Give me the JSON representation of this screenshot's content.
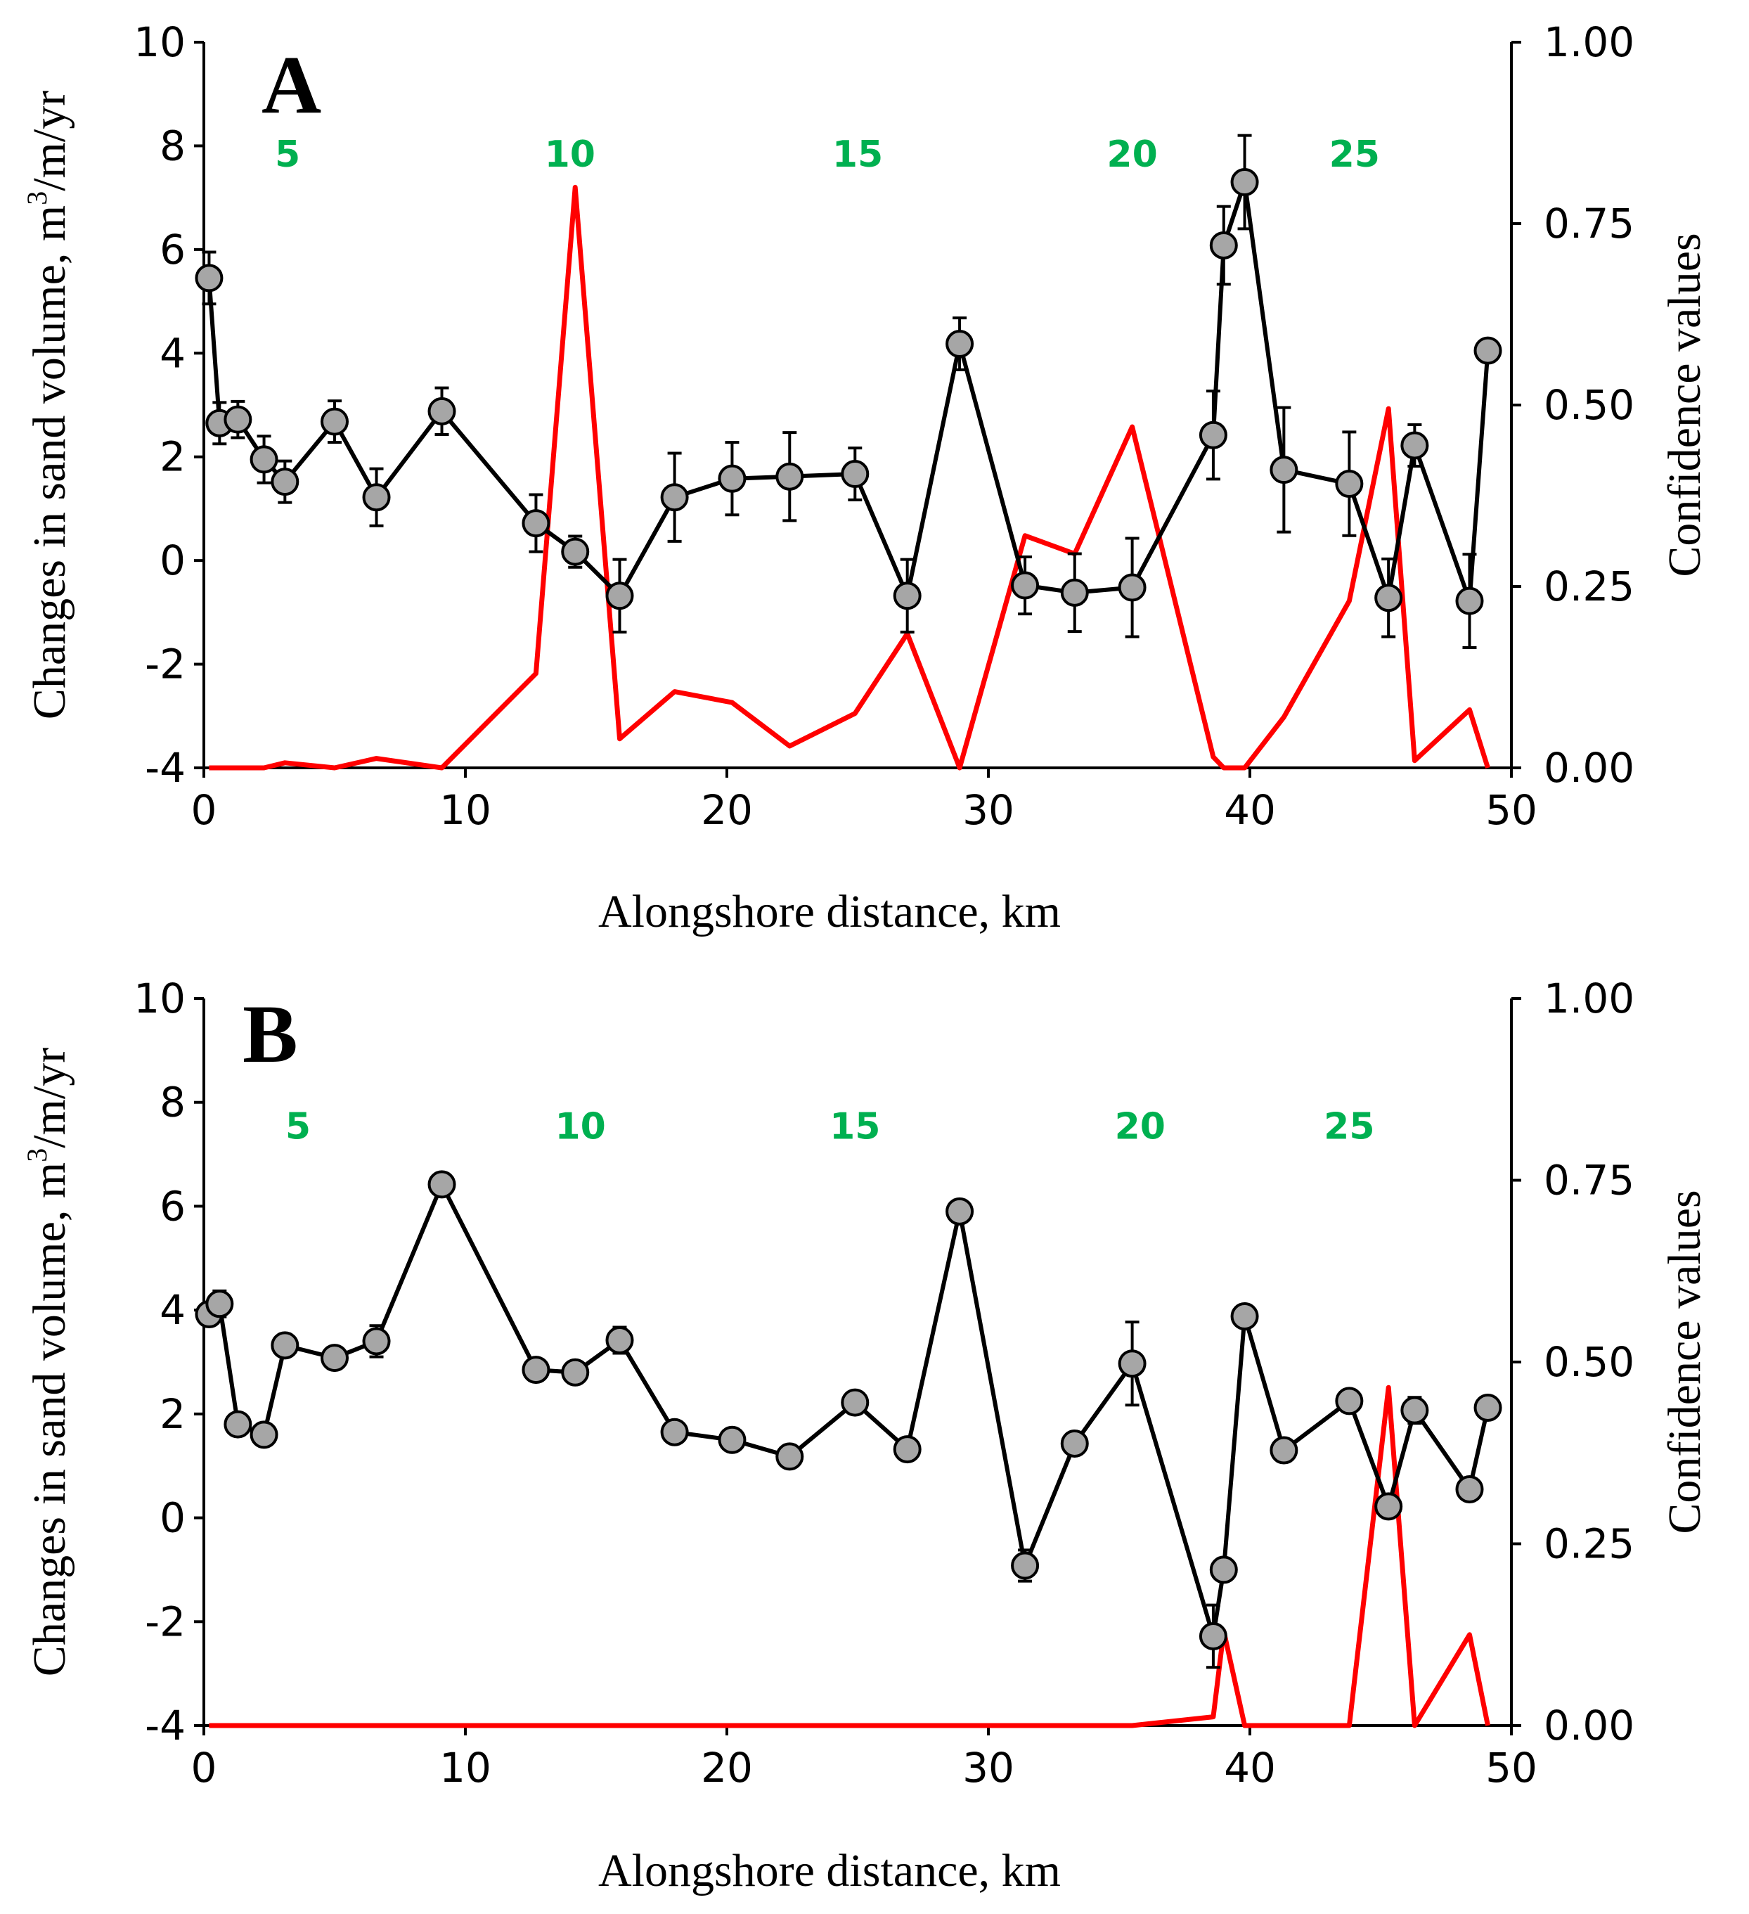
{
  "colors": {
    "series": "#000000",
    "marker_fill": "#a6a6a6",
    "confidence": "#ff0000",
    "profile_labels": "#00b050"
  },
  "chart_data": [
    {
      "type": "line",
      "panel_label": "A",
      "xlabel": "Alongshore distance, km",
      "ylabel_main": "Changes in sand volume, m",
      "ylabel_sup": "3",
      "ylabel_tail": "/m/yr",
      "y2label": "Confidence values",
      "xlim": [
        0,
        50
      ],
      "ylim": [
        -4,
        10
      ],
      "y2lim": [
        0,
        1
      ],
      "x_ticks": [
        "0",
        "10",
        "20",
        "30",
        "40",
        "50"
      ],
      "y_ticks": [
        "-4",
        "-2",
        "0",
        "2",
        "4",
        "6",
        "8",
        "10"
      ],
      "y2_ticks": [
        "0.00",
        "0.25",
        "0.50",
        "0.75",
        "1.00"
      ],
      "profile_labels": [
        {
          "text": "5",
          "x": 3.2,
          "y": 7.6
        },
        {
          "text": "10",
          "x": 14.0,
          "y": 7.6
        },
        {
          "text": "15",
          "x": 25.0,
          "y": 7.6
        },
        {
          "text": "20",
          "x": 35.5,
          "y": 7.6
        },
        {
          "text": "25",
          "x": 44.0,
          "y": 7.6
        }
      ],
      "series": [
        {
          "x": [
            0.2,
            0.6,
            1.3,
            2.3,
            3.1,
            5.0,
            6.6,
            9.1,
            12.7,
            14.2,
            15.9,
            18.0,
            20.2,
            22.4,
            24.9,
            26.9,
            28.9,
            31.4,
            33.3,
            35.5,
            38.6,
            39.0,
            39.8,
            41.3,
            43.8,
            45.3,
            46.3,
            48.4,
            49.1
          ],
          "values": [
            5.45,
            2.65,
            2.72,
            1.95,
            1.52,
            2.68,
            1.22,
            2.88,
            0.72,
            0.17,
            -0.68,
            1.22,
            1.58,
            1.62,
            1.67,
            -0.68,
            4.18,
            -0.48,
            -0.62,
            -0.52,
            2.42,
            6.08,
            7.3,
            1.75,
            1.48,
            -0.72,
            2.22,
            -0.78,
            4.05
          ],
          "err": [
            0.5,
            0.4,
            0.35,
            0.45,
            0.4,
            0.4,
            0.55,
            0.45,
            0.55,
            0.3,
            0.7,
            0.85,
            0.7,
            0.85,
            0.5,
            0.7,
            0.5,
            0.55,
            0.75,
            0.95,
            0.85,
            0.75,
            0.9,
            1.2,
            1.0,
            0.75,
            0.4,
            0.9,
            0.0
          ]
        },
        {
          "axis": "y2",
          "x": [
            0.2,
            2.3,
            3.1,
            5.0,
            6.6,
            9.1,
            12.7,
            14.2,
            15.9,
            18.0,
            20.2,
            22.4,
            24.9,
            26.9,
            28.9,
            31.4,
            33.3,
            35.5,
            38.6,
            39.0,
            39.8,
            41.3,
            43.8,
            45.3,
            46.3,
            48.4,
            49.1
          ],
          "values": [
            0.0,
            0.0,
            0.007,
            0.0,
            0.013,
            0.0,
            0.13,
            0.8,
            0.04,
            0.105,
            0.09,
            0.03,
            0.075,
            0.185,
            0.0,
            0.32,
            0.295,
            0.47,
            0.015,
            0.0,
            0.0,
            0.07,
            0.23,
            0.495,
            0.01,
            0.08,
            0.0
          ]
        }
      ]
    },
    {
      "type": "line",
      "panel_label": "B",
      "xlabel": "Alongshore distance, km",
      "ylabel_main": "Changes in sand volume, m",
      "ylabel_sup": "3",
      "ylabel_tail": "/m/yr",
      "y2label": "Confidence values",
      "xlim": [
        0,
        50
      ],
      "ylim": [
        -4,
        10
      ],
      "y2lim": [
        0,
        1
      ],
      "x_ticks": [
        "0",
        "10",
        "20",
        "30",
        "40",
        "50"
      ],
      "y_ticks": [
        "-4",
        "-2",
        "0",
        "2",
        "4",
        "6",
        "8",
        "10"
      ],
      "y2_ticks": [
        "0.00",
        "0.25",
        "0.50",
        "0.75",
        "1.00"
      ],
      "profile_labels": [
        {
          "text": "5",
          "x": 3.6,
          "y": 7.3
        },
        {
          "text": "10",
          "x": 14.4,
          "y": 7.3
        },
        {
          "text": "15",
          "x": 24.9,
          "y": 7.3
        },
        {
          "text": "20",
          "x": 35.8,
          "y": 7.3
        },
        {
          "text": "25",
          "x": 43.8,
          "y": 7.3
        }
      ],
      "series": [
        {
          "x": [
            0.2,
            0.6,
            1.3,
            2.3,
            3.1,
            5.0,
            6.6,
            9.1,
            12.7,
            14.2,
            15.9,
            18.0,
            20.2,
            22.4,
            24.9,
            26.9,
            28.9,
            31.4,
            33.3,
            35.5,
            38.6,
            39.0,
            39.8,
            41.3,
            43.8,
            45.3,
            46.3,
            48.4,
            49.1
          ],
          "values": [
            3.92,
            4.12,
            1.8,
            1.6,
            3.32,
            3.08,
            3.4,
            6.42,
            2.85,
            2.8,
            3.42,
            1.65,
            1.5,
            1.18,
            2.22,
            1.32,
            5.9,
            -0.92,
            1.43,
            2.97,
            -2.28,
            -1.0,
            3.88,
            1.3,
            2.25,
            0.22,
            2.07,
            0.55,
            2.12
          ],
          "err": [
            0.2,
            0.25,
            0.15,
            0.15,
            0.15,
            0.15,
            0.3,
            0.15,
            0.15,
            0.15,
            0.25,
            0.15,
            0.15,
            0.15,
            0.15,
            0.15,
            0.15,
            0.3,
            0.15,
            0.8,
            0.6,
            0.2,
            0.15,
            0.15,
            0.2,
            0.2,
            0.25,
            0.2,
            0.15
          ]
        },
        {
          "axis": "y2",
          "x": [
            0.2,
            33.3,
            35.5,
            38.6,
            39.0,
            39.8,
            43.8,
            45.3,
            46.3,
            48.4,
            49.1
          ],
          "values": [
            0.0,
            0.0,
            0.0,
            0.012,
            0.13,
            0.0,
            0.0,
            0.465,
            0.0,
            0.125,
            0.0
          ]
        }
      ]
    }
  ]
}
